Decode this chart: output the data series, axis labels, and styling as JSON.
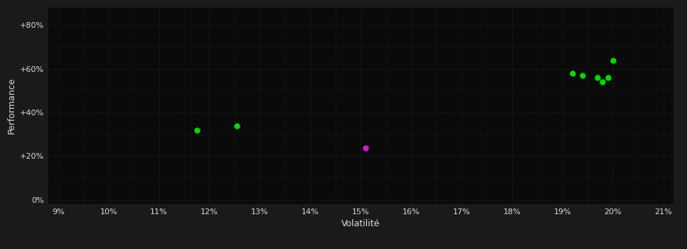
{
  "background_color": "#1a1a1a",
  "plot_bg_color": "#0a0a0a",
  "grid_color": "#2a2a2a",
  "text_color": "#dddddd",
  "xlabel": "Volatilité",
  "ylabel": "Performance",
  "xlim": [
    0.088,
    0.212
  ],
  "ylim": [
    -0.02,
    0.88
  ],
  "xticks": [
    0.09,
    0.1,
    0.11,
    0.12,
    0.13,
    0.14,
    0.15,
    0.16,
    0.17,
    0.18,
    0.19,
    0.2,
    0.21
  ],
  "yticks": [
    0.0,
    0.2,
    0.4,
    0.6,
    0.8
  ],
  "ytick_labels": [
    "0%",
    "+20%",
    "+40%",
    "+60%",
    "+80%"
  ],
  "points_green": [
    [
      0.1175,
      0.318
    ],
    [
      0.1255,
      0.338
    ],
    [
      0.192,
      0.578
    ],
    [
      0.194,
      0.568
    ],
    [
      0.197,
      0.558
    ],
    [
      0.198,
      0.54
    ],
    [
      0.199,
      0.558
    ],
    [
      0.2,
      0.638
    ]
  ],
  "points_magenta": [
    [
      0.151,
      0.238
    ]
  ],
  "green_color": "#00dd00",
  "magenta_color": "#cc22cc",
  "marker_size": 5,
  "figsize": [
    9.66,
    3.5
  ],
  "dpi": 100
}
